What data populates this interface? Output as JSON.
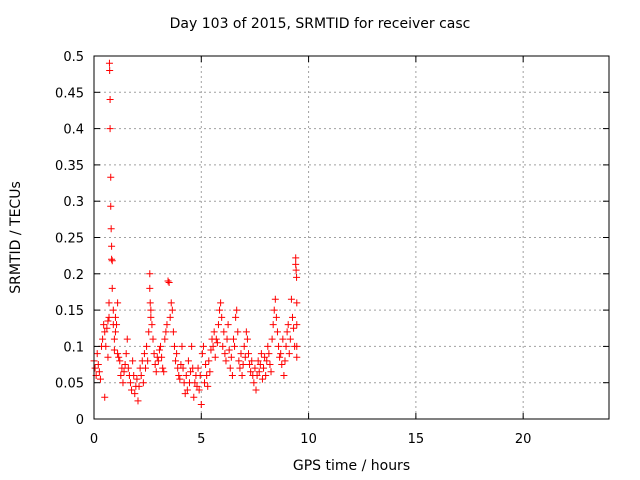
{
  "chart_data": {
    "type": "scatter",
    "title": "Day 103 of 2015, SRMTID for receiver casc",
    "xlabel": "GPS time / hours",
    "ylabel": "SRMTID / TECUs",
    "xlim": [
      0,
      24
    ],
    "ylim": [
      0,
      0.5
    ],
    "grid": true,
    "xticks": [
      0,
      5,
      10,
      15,
      20
    ],
    "yticks": [
      0,
      0.05,
      0.1,
      0.15,
      0.2,
      0.25,
      0.3,
      0.35,
      0.4,
      0.45,
      0.5
    ],
    "xtick_labels": [
      "0",
      "5",
      "10",
      "15",
      "20"
    ],
    "ytick_labels": [
      "0",
      "0.05",
      "0.1",
      "0.15",
      "0.2",
      "0.25",
      "0.3",
      "0.35",
      "0.4",
      "0.45",
      "0.5"
    ],
    "marker": "+",
    "marker_color": "#ff0000",
    "series": [
      {
        "name": "SRMTID",
        "points": [
          [
            0.0,
            0.08
          ],
          [
            0.05,
            0.07
          ],
          [
            0.1,
            0.06
          ],
          [
            0.15,
            0.09
          ],
          [
            0.2,
            0.075
          ],
          [
            0.25,
            0.065
          ],
          [
            0.3,
            0.055
          ],
          [
            0.35,
            0.1
          ],
          [
            0.4,
            0.11
          ],
          [
            0.45,
            0.13
          ],
          [
            0.5,
            0.03
          ],
          [
            0.5,
            0.12
          ],
          [
            0.55,
            0.1
          ],
          [
            0.6,
            0.125
          ],
          [
            0.65,
            0.085
          ],
          [
            0.65,
            0.135
          ],
          [
            0.7,
            0.14
          ],
          [
            0.7,
            0.16
          ],
          [
            0.72,
            0.49
          ],
          [
            0.73,
            0.48
          ],
          [
            0.75,
            0.44
          ],
          [
            0.75,
            0.4
          ],
          [
            0.78,
            0.333
          ],
          [
            0.78,
            0.293
          ],
          [
            0.8,
            0.262
          ],
          [
            0.82,
            0.238
          ],
          [
            0.82,
            0.22
          ],
          [
            0.85,
            0.218
          ],
          [
            0.85,
            0.18
          ],
          [
            0.9,
            0.15
          ],
          [
            0.9,
            0.13
          ],
          [
            0.95,
            0.11
          ],
          [
            0.95,
            0.095
          ],
          [
            1.0,
            0.12
          ],
          [
            1.0,
            0.14
          ],
          [
            1.05,
            0.13
          ],
          [
            1.1,
            0.16
          ],
          [
            1.1,
            0.09
          ],
          [
            1.15,
            0.085
          ],
          [
            1.2,
            0.08
          ],
          [
            1.25,
            0.06
          ],
          [
            1.3,
            0.07
          ],
          [
            1.35,
            0.05
          ],
          [
            1.4,
            0.065
          ],
          [
            1.45,
            0.075
          ],
          [
            1.5,
            0.09
          ],
          [
            1.55,
            0.11
          ],
          [
            1.6,
            0.07
          ],
          [
            1.65,
            0.06
          ],
          [
            1.7,
            0.05
          ],
          [
            1.75,
            0.04
          ],
          [
            1.8,
            0.08
          ],
          [
            1.85,
            0.06
          ],
          [
            1.9,
            0.035
          ],
          [
            1.95,
            0.045
          ],
          [
            2.0,
            0.055
          ],
          [
            2.05,
            0.025
          ],
          [
            2.1,
            0.045
          ],
          [
            2.15,
            0.07
          ],
          [
            2.2,
            0.06
          ],
          [
            2.25,
            0.08
          ],
          [
            2.3,
            0.05
          ],
          [
            2.35,
            0.09
          ],
          [
            2.4,
            0.07
          ],
          [
            2.45,
            0.1
          ],
          [
            2.5,
            0.08
          ],
          [
            2.55,
            0.12
          ],
          [
            2.6,
            0.2
          ],
          [
            2.6,
            0.18
          ],
          [
            2.62,
            0.16
          ],
          [
            2.65,
            0.15
          ],
          [
            2.65,
            0.14
          ],
          [
            2.7,
            0.13
          ],
          [
            2.75,
            0.11
          ],
          [
            2.8,
            0.09
          ],
          [
            2.85,
            0.075
          ],
          [
            2.9,
            0.065
          ],
          [
            2.95,
            0.085
          ],
          [
            3.0,
            0.08
          ],
          [
            3.05,
            0.095
          ],
          [
            3.1,
            0.1
          ],
          [
            3.15,
            0.085
          ],
          [
            3.2,
            0.07
          ],
          [
            3.25,
            0.065
          ],
          [
            3.3,
            0.11
          ],
          [
            3.35,
            0.12
          ],
          [
            3.4,
            0.13
          ],
          [
            3.45,
            0.19
          ],
          [
            3.5,
            0.188
          ],
          [
            3.55,
            0.14
          ],
          [
            3.6,
            0.16
          ],
          [
            3.65,
            0.15
          ],
          [
            3.7,
            0.12
          ],
          [
            3.75,
            0.1
          ],
          [
            3.8,
            0.08
          ],
          [
            3.85,
            0.09
          ],
          [
            3.9,
            0.07
          ],
          [
            3.95,
            0.06
          ],
          [
            4.0,
            0.055
          ],
          [
            4.05,
            0.075
          ],
          [
            4.1,
            0.1
          ],
          [
            4.15,
            0.07
          ],
          [
            4.2,
            0.05
          ],
          [
            4.25,
            0.035
          ],
          [
            4.3,
            0.06
          ],
          [
            4.35,
            0.04
          ],
          [
            4.4,
            0.08
          ],
          [
            4.45,
            0.05
          ],
          [
            4.5,
            0.065
          ],
          [
            4.55,
            0.1
          ],
          [
            4.6,
            0.07
          ],
          [
            4.65,
            0.03
          ],
          [
            4.7,
            0.05
          ],
          [
            4.75,
            0.06
          ],
          [
            4.8,
            0.045
          ],
          [
            4.85,
            0.07
          ],
          [
            4.9,
            0.04
          ],
          [
            4.95,
            0.06
          ],
          [
            5.0,
            0.02
          ],
          [
            5.05,
            0.09
          ],
          [
            5.1,
            0.1
          ],
          [
            5.15,
            0.05
          ],
          [
            5.2,
            0.075
          ],
          [
            5.25,
            0.06
          ],
          [
            5.3,
            0.045
          ],
          [
            5.35,
            0.08
          ],
          [
            5.4,
            0.065
          ],
          [
            5.45,
            0.095
          ],
          [
            5.5,
            0.11
          ],
          [
            5.55,
            0.1
          ],
          [
            5.6,
            0.12
          ],
          [
            5.65,
            0.085
          ],
          [
            5.7,
            0.11
          ],
          [
            5.75,
            0.105
          ],
          [
            5.8,
            0.13
          ],
          [
            5.85,
            0.15
          ],
          [
            5.9,
            0.16
          ],
          [
            5.95,
            0.14
          ],
          [
            6.0,
            0.1
          ],
          [
            6.05,
            0.12
          ],
          [
            6.1,
            0.09
          ],
          [
            6.15,
            0.08
          ],
          [
            6.2,
            0.11
          ],
          [
            6.25,
            0.13
          ],
          [
            6.3,
            0.095
          ],
          [
            6.35,
            0.07
          ],
          [
            6.4,
            0.085
          ],
          [
            6.45,
            0.06
          ],
          [
            6.5,
            0.11
          ],
          [
            6.55,
            0.1
          ],
          [
            6.6,
            0.14
          ],
          [
            6.65,
            0.15
          ],
          [
            6.7,
            0.12
          ],
          [
            6.75,
            0.08
          ],
          [
            6.8,
            0.07
          ],
          [
            6.85,
            0.09
          ],
          [
            6.9,
            0.06
          ],
          [
            6.95,
            0.075
          ],
          [
            7.0,
            0.1
          ],
          [
            7.05,
            0.085
          ],
          [
            7.1,
            0.12
          ],
          [
            7.15,
            0.11
          ],
          [
            7.2,
            0.09
          ],
          [
            7.25,
            0.075
          ],
          [
            7.3,
            0.065
          ],
          [
            7.35,
            0.08
          ],
          [
            7.4,
            0.06
          ],
          [
            7.45,
            0.05
          ],
          [
            7.5,
            0.07
          ],
          [
            7.55,
            0.04
          ],
          [
            7.6,
            0.06
          ],
          [
            7.65,
            0.08
          ],
          [
            7.7,
            0.065
          ],
          [
            7.75,
            0.075
          ],
          [
            7.8,
            0.09
          ],
          [
            7.85,
            0.055
          ],
          [
            7.9,
            0.07
          ],
          [
            7.95,
            0.085
          ],
          [
            8.0,
            0.06
          ],
          [
            8.05,
            0.08
          ],
          [
            8.1,
            0.1
          ],
          [
            8.15,
            0.09
          ],
          [
            8.2,
            0.075
          ],
          [
            8.25,
            0.065
          ],
          [
            8.3,
            0.11
          ],
          [
            8.35,
            0.13
          ],
          [
            8.4,
            0.15
          ],
          [
            8.45,
            0.165
          ],
          [
            8.5,
            0.14
          ],
          [
            8.55,
            0.12
          ],
          [
            8.6,
            0.1
          ],
          [
            8.65,
            0.085
          ],
          [
            8.7,
            0.09
          ],
          [
            8.75,
            0.075
          ],
          [
            8.8,
            0.11
          ],
          [
            8.85,
            0.06
          ],
          [
            8.9,
            0.08
          ],
          [
            8.95,
            0.1
          ],
          [
            9.0,
            0.12
          ],
          [
            9.05,
            0.13
          ],
          [
            9.1,
            0.09
          ],
          [
            9.15,
            0.11
          ],
          [
            9.2,
            0.165
          ],
          [
            9.25,
            0.14
          ],
          [
            9.3,
            0.125
          ],
          [
            9.35,
            0.1
          ],
          [
            9.4,
            0.222
          ],
          [
            9.4,
            0.213
          ],
          [
            9.42,
            0.205
          ],
          [
            9.44,
            0.195
          ],
          [
            9.45,
            0.16
          ],
          [
            9.45,
            0.13
          ],
          [
            9.45,
            0.1
          ],
          [
            9.45,
            0.085
          ]
        ]
      }
    ]
  }
}
